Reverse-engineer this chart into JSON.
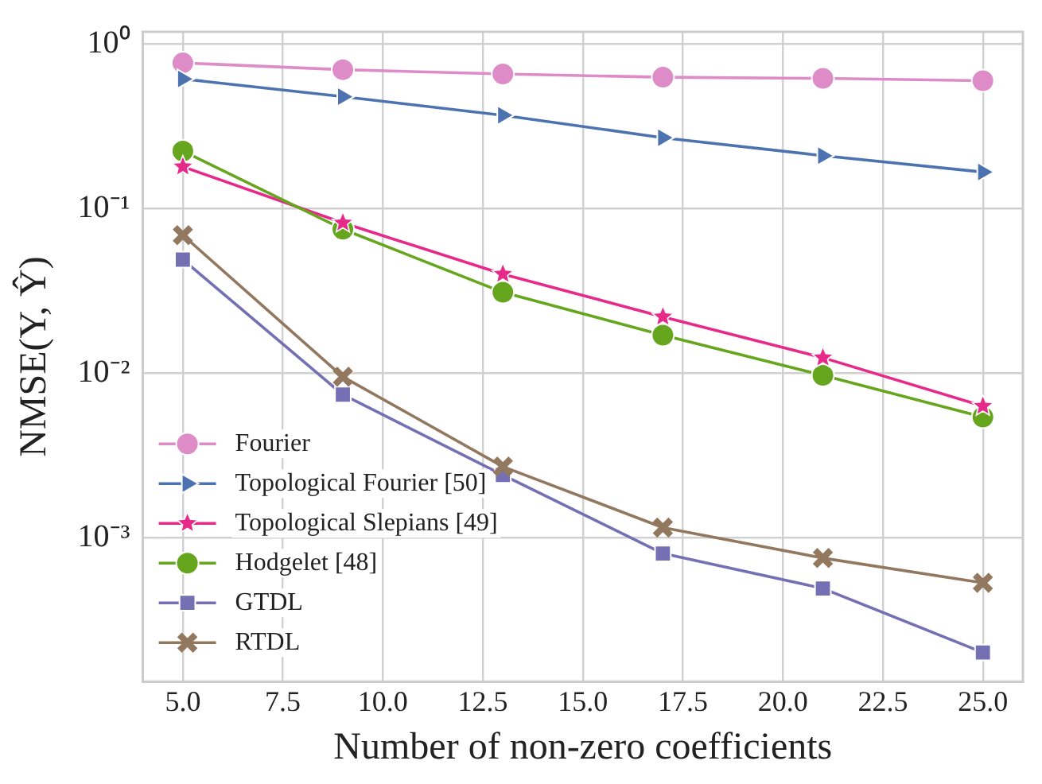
{
  "chart_data": {
    "type": "line",
    "xlabel": "Number of non-zero coefficients",
    "ylabel": "NMSE(Y, Ŷ)",
    "x": [
      5,
      9,
      13,
      17,
      21,
      25
    ],
    "series": [
      {
        "name": "Fourier",
        "color": "#dd8cc8",
        "marker": "circle",
        "values": [
          0.77,
          0.7,
          0.66,
          0.63,
          0.62,
          0.6
        ]
      },
      {
        "name": "Topological Fourier [50]",
        "color": "#4c72b0",
        "marker": "triangle",
        "values": [
          0.615,
          0.48,
          0.37,
          0.27,
          0.21,
          0.167
        ]
      },
      {
        "name": "Topological Slepians [49]",
        "color": "#e7298a",
        "marker": "star",
        "values": [
          0.18,
          0.082,
          0.04,
          0.022,
          0.0124,
          0.0063
        ]
      },
      {
        "name": "Hodgelet [48]",
        "color": "#66a61e",
        "marker": "circle",
        "values": [
          0.224,
          0.075,
          0.031,
          0.017,
          0.0097,
          0.0054
        ]
      },
      {
        "name": "GTDL",
        "color": "#7570b3",
        "marker": "square",
        "values": [
          0.049,
          0.0074,
          0.0024,
          0.0008,
          0.00049,
          0.0002
        ]
      },
      {
        "name": "RTDL",
        "color": "#937860",
        "marker": "cross",
        "values": [
          0.069,
          0.0095,
          0.0027,
          0.00115,
          0.00075,
          0.00053
        ]
      }
    ],
    "xlim": [
      4,
      26
    ],
    "xticks": [
      {
        "value": 5,
        "label": "5.0"
      },
      {
        "value": 7.5,
        "label": "7.5"
      },
      {
        "value": 10,
        "label": "10.0"
      },
      {
        "value": 12.5,
        "label": "12.5"
      },
      {
        "value": 15,
        "label": "15.0"
      },
      {
        "value": 17.5,
        "label": "17.5"
      },
      {
        "value": 20,
        "label": "20.0"
      },
      {
        "value": 22.5,
        "label": "22.5"
      },
      {
        "value": 25,
        "label": "25.0"
      }
    ],
    "ylim": [
      0.000133,
      1.19
    ],
    "yticks": [
      {
        "value": 0.001,
        "label": "10⁻³"
      },
      {
        "value": 0.01,
        "label": "10⁻²"
      },
      {
        "value": 0.1,
        "label": "10⁻¹"
      },
      {
        "value": 1,
        "label": "10⁰"
      }
    ],
    "log": "y",
    "grid": true,
    "legend": "lower left",
    "line_style": "solid"
  }
}
